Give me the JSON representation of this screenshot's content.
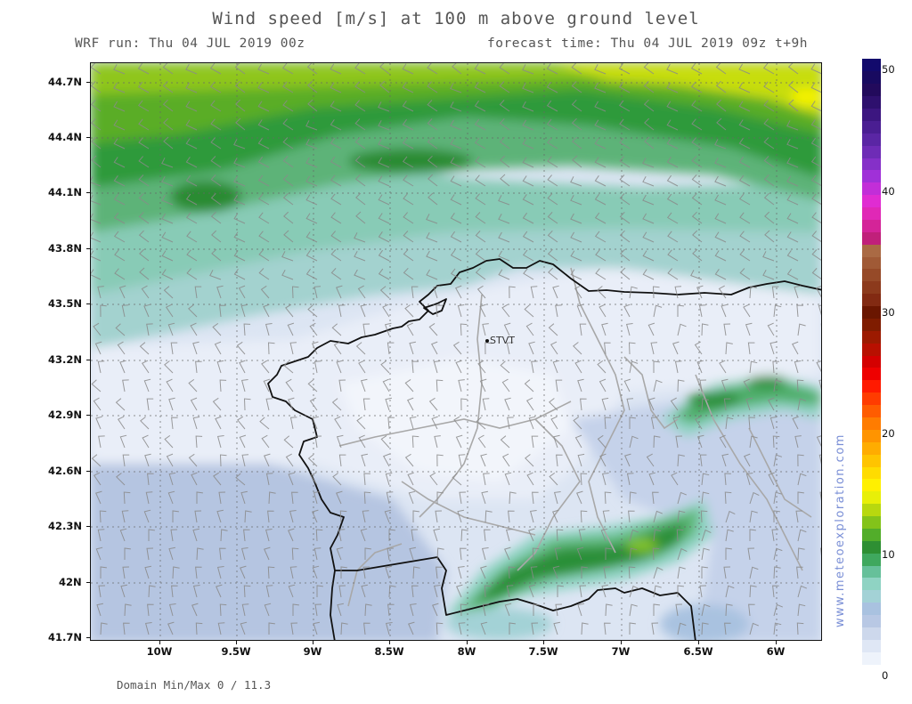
{
  "header": {
    "title": "Wind speed [m/s] at 100 m above ground level",
    "run_label": "WRF run: Thu 04 JUL 2019 00z",
    "forecast_label": "forecast time: Thu 04 JUL 2019 09z  t+9h"
  },
  "map": {
    "lat_ticks": [
      "44.7N",
      "44.4N",
      "44.1N",
      "43.8N",
      "43.5N",
      "43.2N",
      "42.9N",
      "42.6N",
      "42.3N",
      "42N",
      "41.7N"
    ],
    "lon_ticks": [
      "10W",
      "9.5W",
      "9W",
      "8.5W",
      "8W",
      "7.5W",
      "7W",
      "6.5W",
      "6W"
    ],
    "station": {
      "code": "STVT"
    }
  },
  "colorbar": {
    "labels": [
      "50",
      "40",
      "30",
      "20",
      "10",
      "0"
    ],
    "colors": [
      "#ffffff",
      "#eef3fb",
      "#dfe7f5",
      "#cdd8ec",
      "#b8c8e4",
      "#a9c2e0",
      "#a3d2d6",
      "#8fd3c3",
      "#66c09a",
      "#3fa85e",
      "#2e8f33",
      "#52ad2a",
      "#83c31a",
      "#b8d80f",
      "#e8ef08",
      "#fff000",
      "#ffdc00",
      "#ffc400",
      "#ffac00",
      "#ff9400",
      "#ff7c00",
      "#ff5c00",
      "#ff3c00",
      "#ff1a00",
      "#ee0000",
      "#d40000",
      "#b81000",
      "#9c1a00",
      "#7f1c00",
      "#6a1600",
      "#822a12",
      "#8c3a1c",
      "#964a28",
      "#a05a36",
      "#aa6a44",
      "#c0207a",
      "#d42498",
      "#e028b6",
      "#e02cd2",
      "#c22ed8",
      "#a030d8",
      "#8530c8",
      "#6e2cb6",
      "#5a26a4",
      "#4a1e92",
      "#3c1680",
      "#2e106e",
      "#220a5c",
      "#180a60",
      "#120a6c"
    ]
  },
  "footer": {
    "minmax": "Domain Min/Max 0 / 11.3",
    "watermark": "www.meteoexploration.com"
  }
}
